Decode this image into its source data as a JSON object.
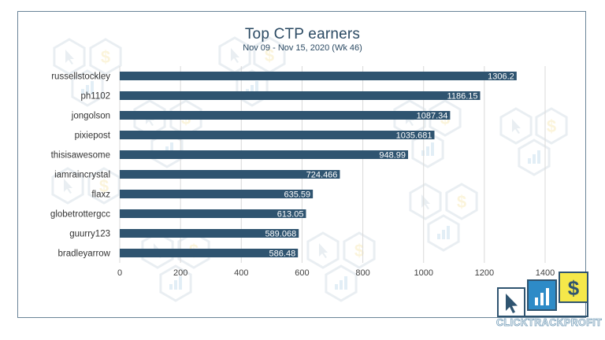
{
  "chart_data": {
    "type": "bar",
    "orientation": "horizontal",
    "title": "Top CTP earners",
    "subtitle": "Nov 09 - Nov 15, 2020 (Wk 46)",
    "xlabel": "",
    "ylabel": "",
    "categories": [
      "russellstockley",
      "ph1102",
      "jongolson",
      "pixiepost",
      "thisisawesome",
      "iamraincrystal",
      "flaxz",
      "globetrottergcc",
      "guurry123",
      "bradleyarrow"
    ],
    "values": [
      1306.2,
      1186.15,
      1087.34,
      1035.681,
      948.99,
      724.466,
      635.59,
      613.05,
      589.068,
      586.48
    ],
    "data_labels": [
      "1306.2",
      "1186.15",
      "1087.34",
      "1035.681",
      "948.99",
      "724.466",
      "635.59",
      "613.05",
      "589.068",
      "586.48"
    ],
    "x_ticks": [
      "0",
      "200",
      "400",
      "600",
      "800",
      "1000",
      "1200",
      "1400"
    ],
    "xlim": [
      0,
      1400
    ],
    "grid": "vertical",
    "legend": "none",
    "bar_color": "#2f5470",
    "grid_color": "#d9d9d9",
    "title_color": "#2b4a63"
  },
  "logo": {
    "name": "CLICKTRACKPROFIT",
    "parts": [
      "CLICK",
      "TRACK",
      "PROFIT"
    ],
    "colors": {
      "arrow_box": "#ffffff",
      "chart_box": "#2e8bc7",
      "dollar_box": "#f5e84a",
      "outline": "#2f5470"
    }
  },
  "watermark": {
    "icons": [
      "cursor-icon",
      "dollar-icon",
      "bar-chart-icon"
    ]
  }
}
